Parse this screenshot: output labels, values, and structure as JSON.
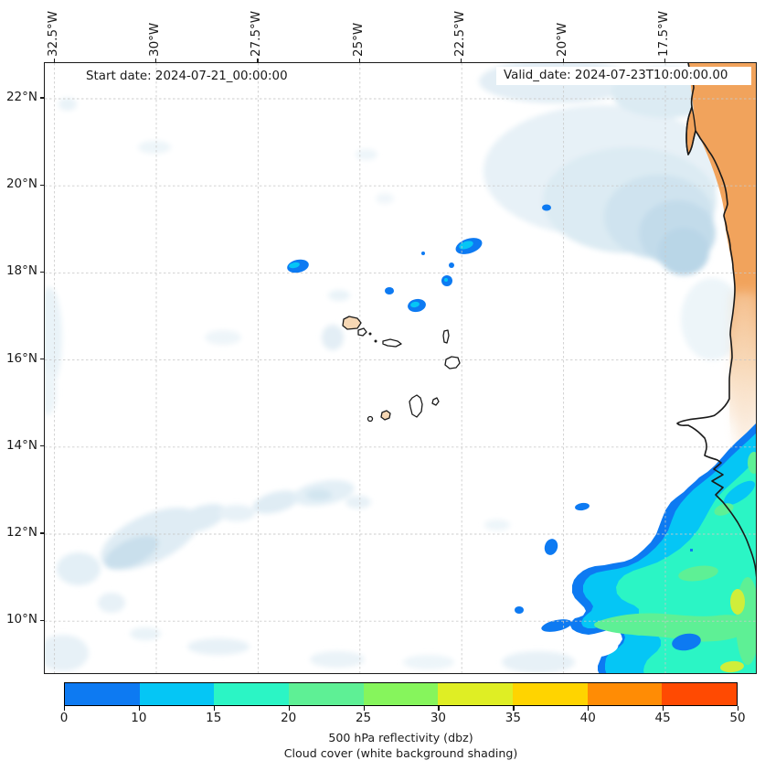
{
  "annotations": {
    "start_date": "Start date: 2024-07-21_00:00:00",
    "valid_date": "Valid_date: 2024-07-23T10:00:00.00"
  },
  "x_axis": {
    "ticks": [
      "32.5°W",
      "30°W",
      "27.5°W",
      "25°W",
      "22.5°W",
      "20°W",
      "17.5°W"
    ]
  },
  "y_axis": {
    "ticks": [
      "22°N",
      "20°N",
      "18°N",
      "16°N",
      "14°N",
      "12°N",
      "10°N"
    ]
  },
  "colorbar": {
    "tick_labels": [
      "0",
      "10",
      "15",
      "20",
      "25",
      "30",
      "35",
      "40",
      "45",
      "50"
    ],
    "boundaries": [
      0,
      10,
      15,
      20,
      25,
      30,
      35,
      40,
      45,
      50
    ],
    "segment_colors": [
      "#0d7af2",
      "#05c6f5",
      "#2bf5c5",
      "#5ef095",
      "#86f55c",
      "#dfee24",
      "#ffd400",
      "#ff8c05",
      "#ff4a02"
    ],
    "title_line1": "500 hPa reflectivity (dbz)",
    "title_line2": "Cloud cover (white background shading)"
  },
  "palette": {
    "land_shading": "#f1a35c",
    "island_fill": "#f6d7b4",
    "cloud_shading_light": "#e7f1f7",
    "cloud_shading_dense": "#c2dbea",
    "gridline": "#c8c8c8",
    "coastline": "#1a1a1a"
  },
  "chart_data": {
    "type": "heatmap",
    "title": "",
    "xlabel": "",
    "ylabel": "",
    "x_ticks": [
      "32.5°W",
      "30°W",
      "27.5°W",
      "25°W",
      "22.5°W",
      "20°W",
      "17.5°W"
    ],
    "y_ticks": [
      "22°N",
      "20°N",
      "18°N",
      "16°N",
      "14°N",
      "12°N",
      "10°N"
    ],
    "lon_range_deg_W": [
      32.7,
      15.2
    ],
    "lat_range_deg_N": [
      8.8,
      22.8
    ],
    "grid": "dashed 2.5deg lon x 2deg lat",
    "colorbar": {
      "label": "500 hPa reflectivity (dbz)",
      "sublabel": "Cloud cover (white background shading)",
      "boundaries": [
        0,
        10,
        15,
        20,
        25,
        30,
        35,
        40,
        45,
        50
      ],
      "colors": [
        "#0d7af2",
        "#05c6f5",
        "#2bf5c5",
        "#5ef095",
        "#86f55c",
        "#dfee24",
        "#ffd400",
        "#ff8c05",
        "#ff4a02"
      ],
      "spacing": "uniform"
    },
    "annotations": [
      "Start date: 2024-07-21_00:00:00",
      "Valid_date: 2024-07-23T10:00:00.00"
    ],
    "features": [
      {
        "name": "main_reflectivity_area",
        "lon": "19.8W to map edge",
        "lat": "8.8N-14.5N",
        "levels_dbz": [
          0,
          30
        ],
        "note": "large contoured area off Senegal coast, mostly 10-25 dbz with 25-35 dbz spots"
      },
      {
        "name": "isolated_cells_dbz_0_15",
        "points_lon_lat": [
          [
            26.5,
            18.1
          ],
          [
            22.3,
            18.6
          ],
          [
            22.8,
            17.8
          ],
          [
            23.6,
            17.3
          ],
          [
            24.2,
            17.6
          ],
          [
            19.5,
            12.6
          ],
          [
            20.3,
            11.7
          ],
          [
            21.1,
            10.3
          ],
          [
            20.2,
            9.9
          ]
        ]
      },
      {
        "name": "land_shading_orange",
        "region": "NE corner, Western Sahara / Mauritania coast"
      },
      {
        "name": "cloud_cover_shading",
        "region": "faint blue-gray patches over ocean, densest near 20W 20N and along 12-13N band"
      }
    ]
  }
}
